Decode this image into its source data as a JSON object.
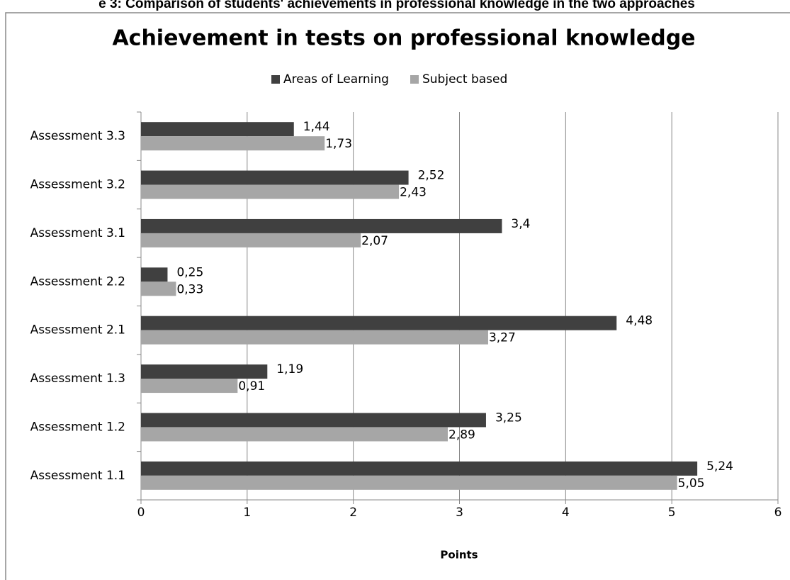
{
  "caption": "e 3: Comparison of students' achievements in professional knowledge in the two approaches",
  "chart_data": {
    "type": "hbar",
    "title": "Achievement in tests on professional knowledge",
    "xlabel": "Points",
    "categories": [
      "Assessment 3.3",
      "Assessment 3.2",
      "Assessment 3.1",
      "Assessment 2.2",
      "Assessment 2.1",
      "Assessment 1.3",
      "Assessment 1.2",
      "Assessment 1.1"
    ],
    "series": [
      {
        "name": "Areas of Learning",
        "color": "#404040",
        "values": [
          1.44,
          2.52,
          3.4,
          0.25,
          4.48,
          1.19,
          3.25,
          5.24
        ],
        "value_labels": [
          "1,44",
          "2,52",
          "3,4",
          "0,25",
          "4,48",
          "1,19",
          "3,25",
          "5,24"
        ]
      },
      {
        "name": "Subject based",
        "color": "#a6a6a6",
        "values": [
          1.73,
          2.43,
          2.07,
          0.33,
          3.27,
          0.91,
          2.89,
          5.05
        ],
        "value_labels": [
          "1,73",
          "2,43",
          "2,07",
          "0,33",
          "3,27",
          "0,91",
          "2,89",
          "5,05"
        ]
      }
    ],
    "xlim": [
      0,
      6
    ],
    "xticks": [
      0,
      1,
      2,
      3,
      4,
      5,
      6
    ],
    "grid": true,
    "legend": "top"
  }
}
